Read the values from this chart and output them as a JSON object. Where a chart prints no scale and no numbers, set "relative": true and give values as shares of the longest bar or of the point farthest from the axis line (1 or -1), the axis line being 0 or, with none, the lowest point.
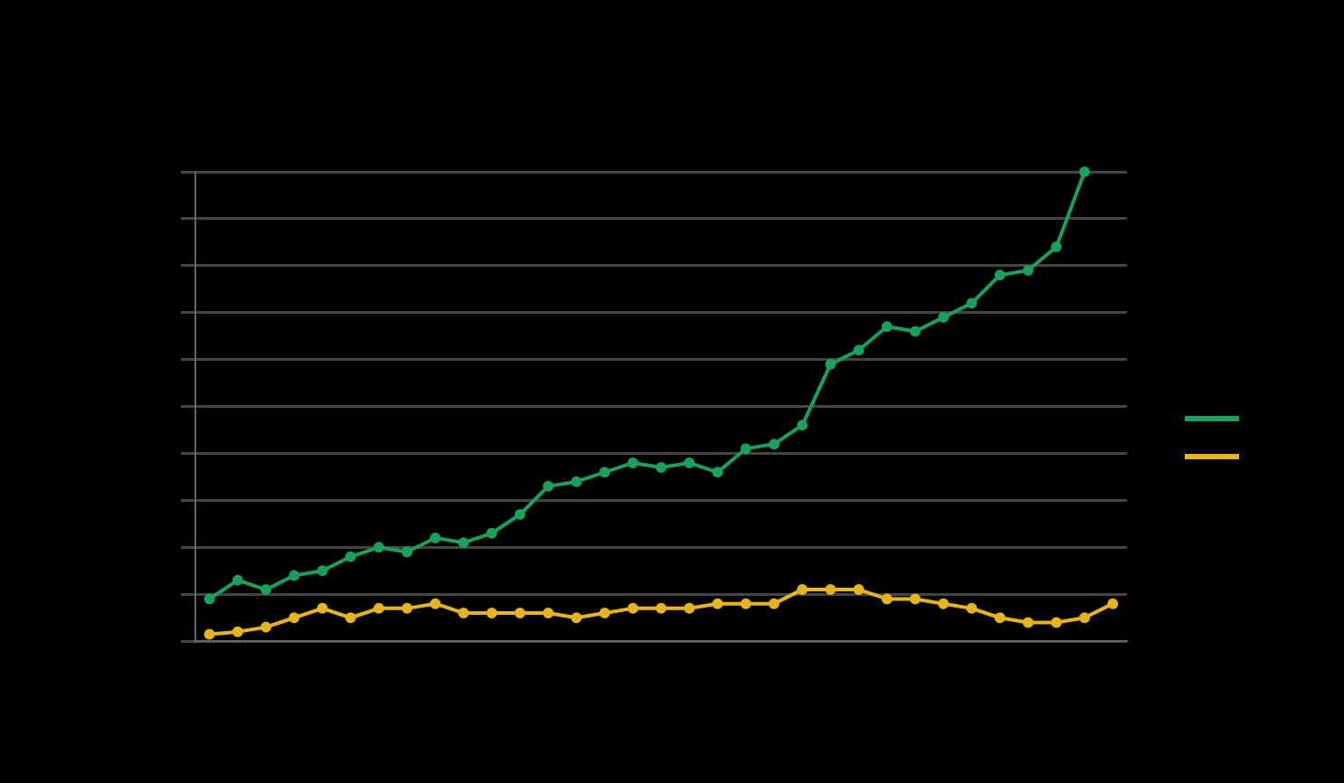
{
  "chart_data": {
    "type": "line",
    "relative": true,
    "categories": [
      null,
      null,
      null,
      null,
      null,
      null,
      null,
      null,
      null,
      null,
      null,
      null,
      null,
      null,
      null,
      null,
      null,
      null,
      null,
      null,
      null,
      null,
      null,
      null,
      null,
      null,
      null,
      null,
      null,
      null,
      null,
      null,
      null
    ],
    "series": [
      {
        "color": "#1aa05a",
        "values": [
          0.09,
          0.13,
          0.11,
          0.14,
          0.15,
          0.18,
          0.2,
          0.19,
          0.22,
          0.21,
          0.23,
          0.27,
          0.33,
          0.34,
          0.36,
          0.38,
          0.37,
          0.38,
          0.36,
          0.41,
          0.42,
          0.46,
          0.59,
          0.62,
          0.67,
          0.66,
          0.69,
          0.72,
          0.78,
          0.79,
          0.84,
          1,
          null
        ]
      },
      {
        "color": "#e6b420",
        "values": [
          0.015,
          0.02,
          0.03,
          0.05,
          0.07,
          0.05,
          0.07,
          0.07,
          0.08,
          0.06,
          0.06,
          0.06,
          0.06,
          0.05,
          0.06,
          0.07,
          0.07,
          0.07,
          0.08,
          0.08,
          0.08,
          0.11,
          0.11,
          0.11,
          0.09,
          0.09,
          0.08,
          0.07,
          0.05,
          0.04,
          0.04,
          0.05,
          0.08
        ]
      }
    ],
    "grid": "y",
    "marker": "circle",
    "line_style": "solid"
  }
}
